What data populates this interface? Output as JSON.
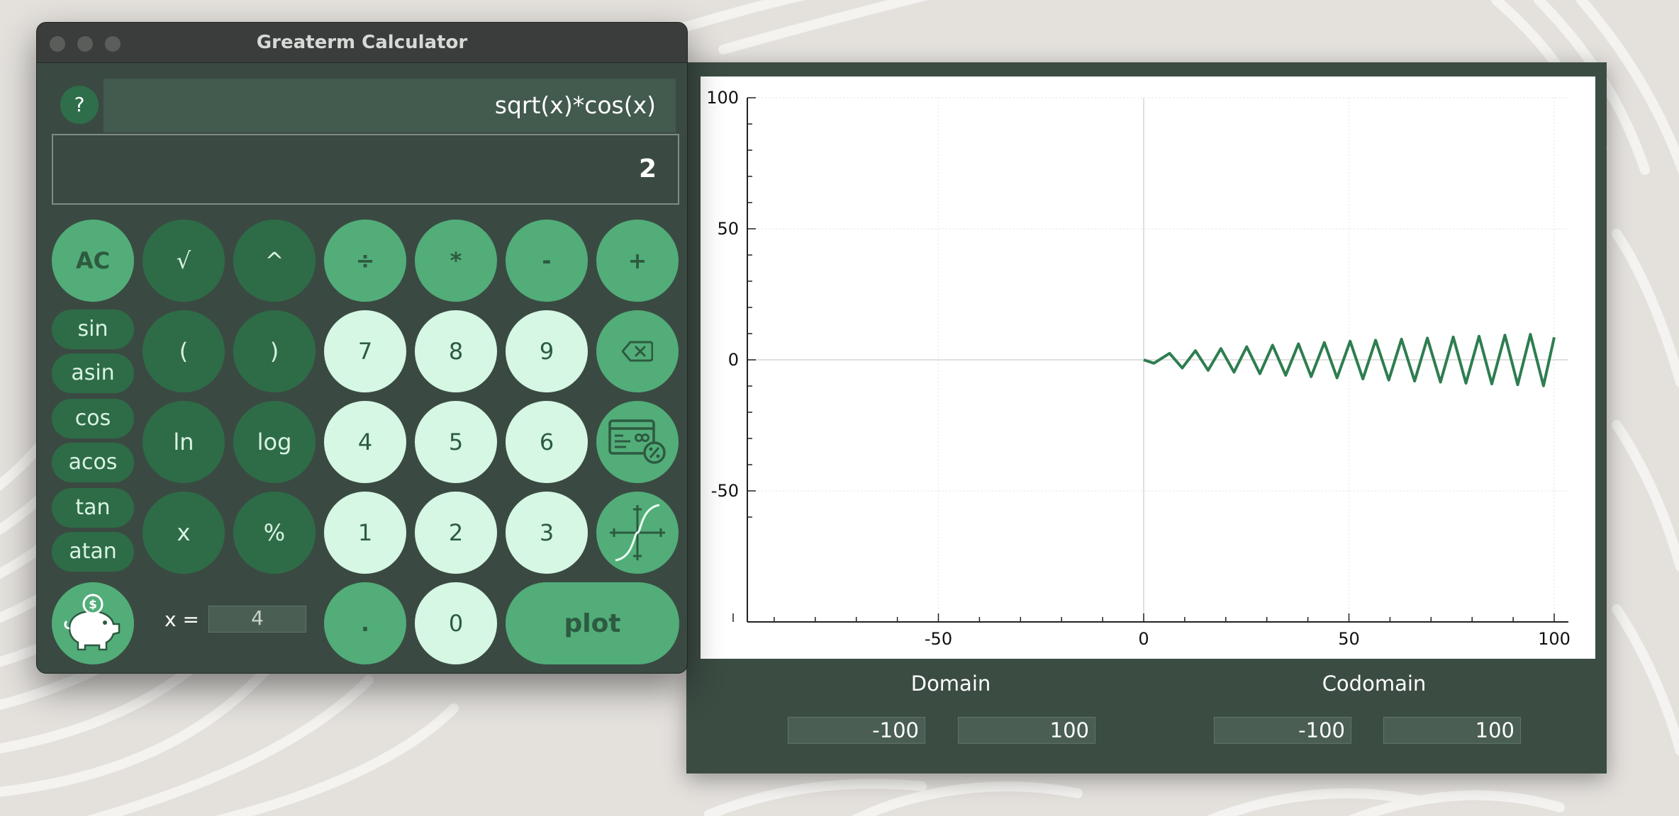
{
  "window": {
    "title": "Greaterm Calculator"
  },
  "help_label": "?",
  "display": {
    "expression": "sqrt(x)*cos(x)",
    "result": "2"
  },
  "keys": {
    "ac": "AC",
    "sqrt": "√",
    "pow": "^",
    "divide": "÷",
    "multiply": "*",
    "minus": "-",
    "plus": "+",
    "lparen": "(",
    "rparen": ")",
    "ln": "ln",
    "log": "log",
    "x": "x",
    "percent": "%",
    "d7": "7",
    "d8": "8",
    "d9": "9",
    "d4": "4",
    "d5": "5",
    "d6": "6",
    "d1": "1",
    "d2": "2",
    "d3": "3",
    "dot": ".",
    "d0": "0",
    "plot": "plot"
  },
  "trig": [
    "sin",
    "asin",
    "cos",
    "acos",
    "tan",
    "atan"
  ],
  "icons": {
    "backspace": "backspace-icon",
    "finance": "finance-card-percent-icon",
    "graph": "function-graph-icon",
    "savings": "piggy-bank-icon"
  },
  "x_variable": {
    "label": "x =",
    "value": "4"
  },
  "domain": {
    "label": "Domain",
    "min": "-100",
    "max": "100"
  },
  "codomain": {
    "label": "Codomain",
    "min": "-100",
    "max": "100"
  },
  "colors": {
    "accent": "#52ad79",
    "dark_key": "#2e6c48",
    "light_key": "#d5f7e3",
    "curve": "#2e7d50",
    "panel": "#3b4c43"
  },
  "chart_data": {
    "type": "line",
    "function": "sqrt(x)*cos(x)",
    "xlim": [
      -100,
      100
    ],
    "ylim": [
      -100,
      100
    ],
    "xticks": [
      "-50",
      "0",
      "50",
      "100"
    ],
    "yticks": [
      "100",
      "50",
      "0",
      "-50"
    ],
    "grid": true,
    "series": [
      {
        "x": [
          0,
          2.5,
          6.3,
          9.4,
          12.6,
          15.7,
          18.8,
          22,
          25.1,
          28.3,
          31.4,
          34.6,
          37.7,
          40.8,
          44,
          47.1,
          50.3,
          53.4,
          56.5,
          59.7,
          62.8,
          66,
          69.1,
          72.3,
          75.4,
          78.5,
          81.7,
          84.8,
          88,
          91.1,
          94.2,
          97.4,
          100
        ],
        "y": [
          0,
          -1.3,
          2.5,
          -3.1,
          3.5,
          -4,
          4.3,
          -4.7,
          5,
          -5.3,
          5.6,
          -5.9,
          6.1,
          -6.4,
          6.6,
          -6.9,
          7.1,
          -7.3,
          7.5,
          -7.7,
          7.9,
          -8.1,
          8.3,
          -8.5,
          8.7,
          -8.9,
          9,
          -9.2,
          9.4,
          -9.5,
          9.7,
          -9.9,
          8.6
        ]
      }
    ]
  }
}
